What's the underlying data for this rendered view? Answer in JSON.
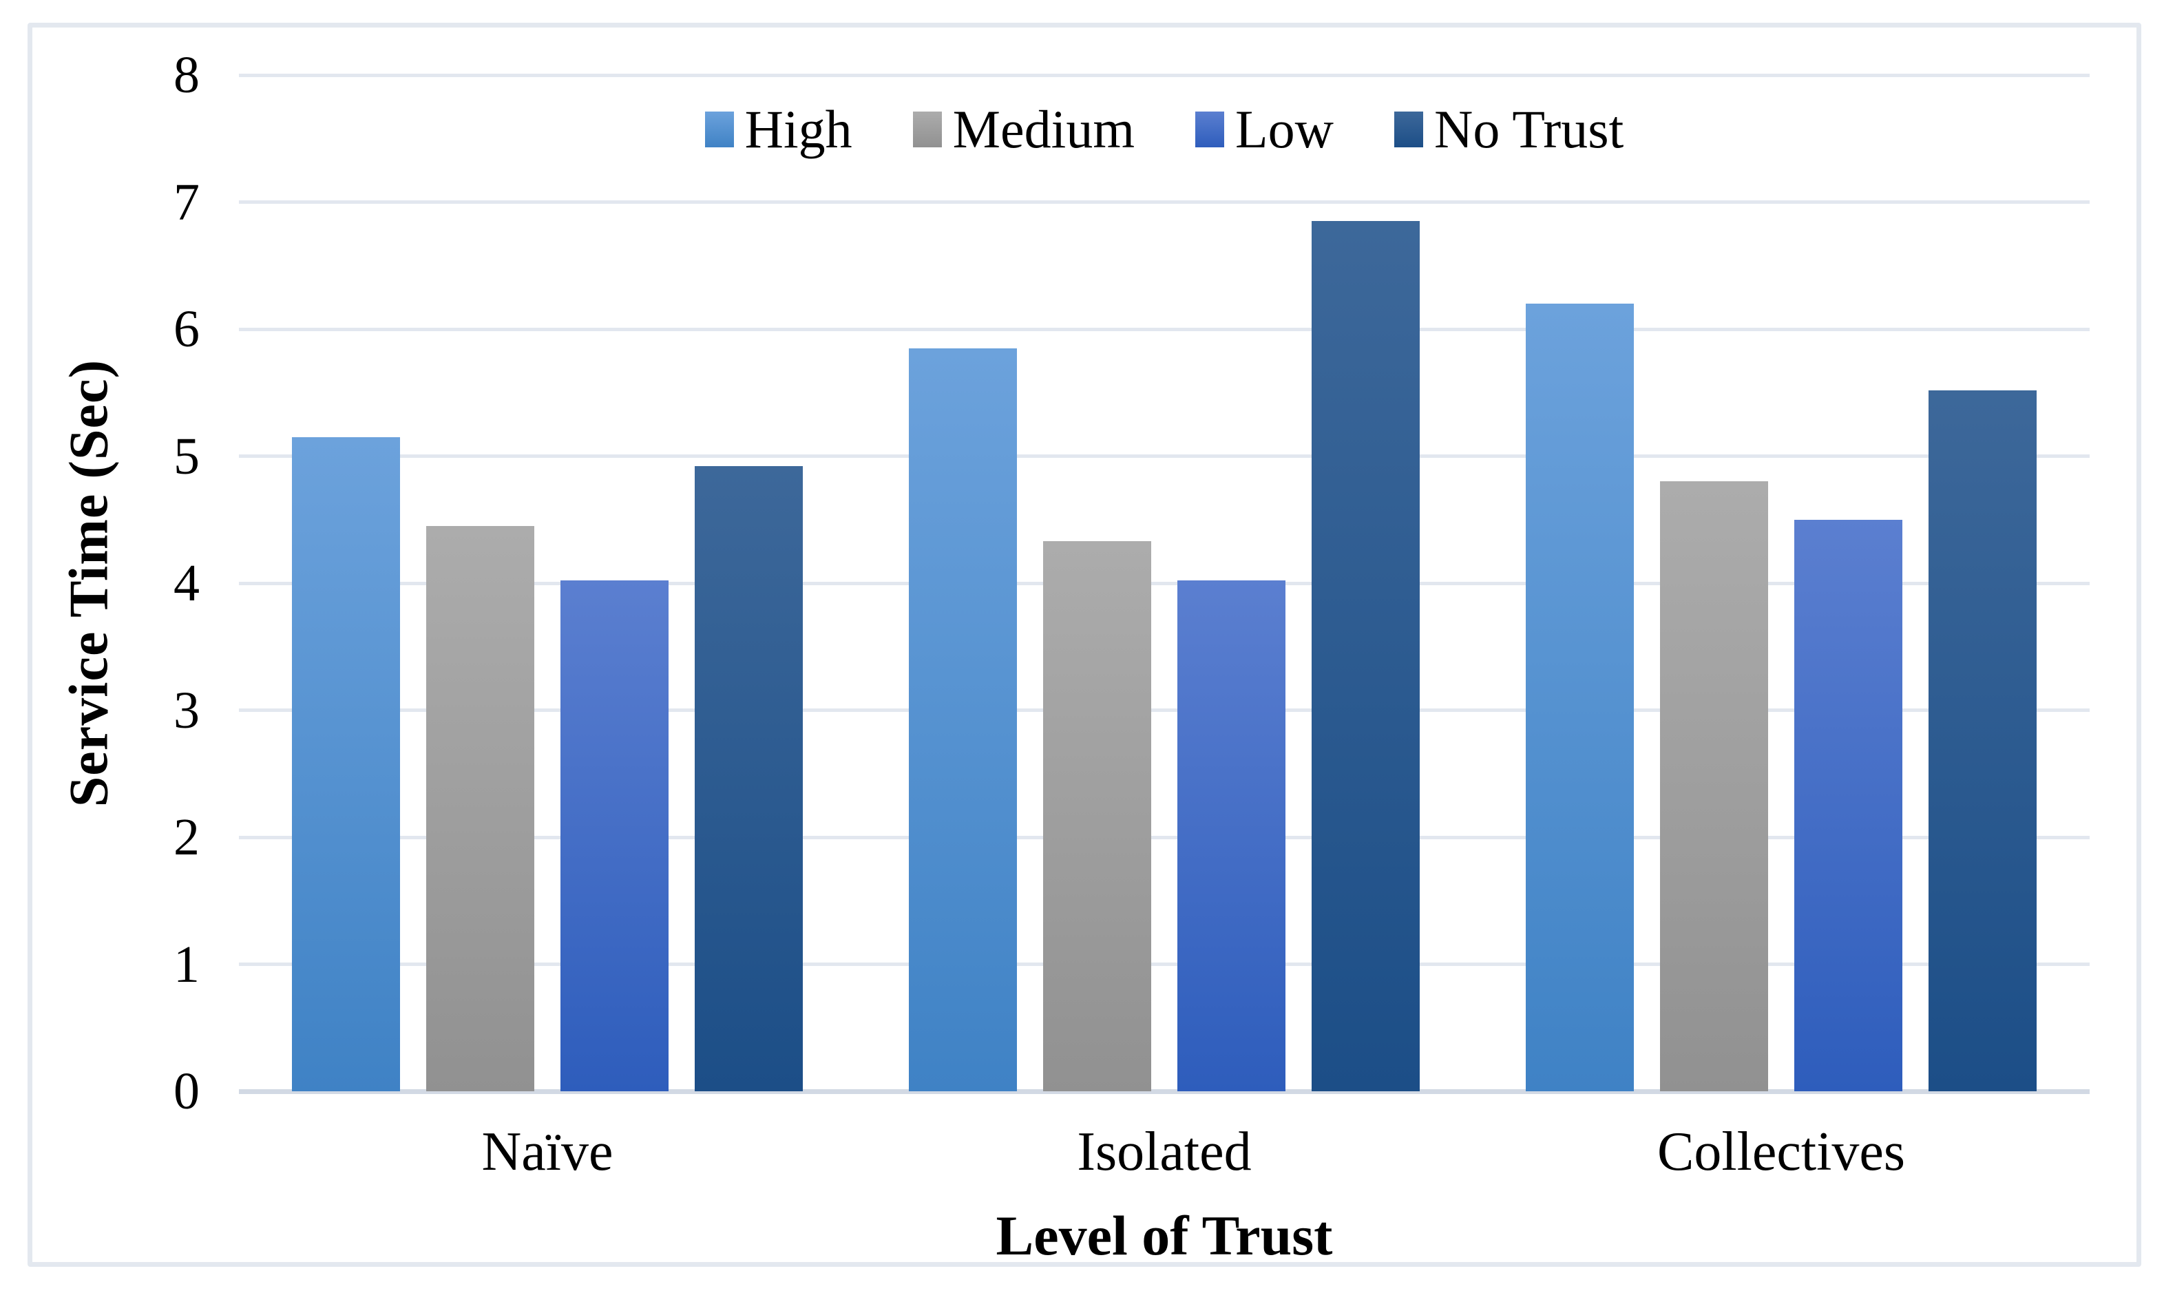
{
  "figure": {
    "background": "#ffffff",
    "frame_border_color": "#e3e8ef",
    "gridline_color": "#e2e7ef",
    "axis_line_color": "#d2d9e4"
  },
  "chart_data": {
    "type": "bar",
    "title": "",
    "xlabel": "Level of Trust",
    "ylabel": "Service Time (Sec)",
    "categories": [
      "Naïve",
      "Isolated",
      "Collectives"
    ],
    "series": [
      {
        "name": "High",
        "values": [
          5.15,
          5.85,
          6.2
        ],
        "color_top": "#6CA2DC",
        "color_bottom": "#3F82C5"
      },
      {
        "name": "Medium",
        "values": [
          4.45,
          4.33,
          4.8
        ],
        "color_top": "#ACACAC",
        "color_bottom": "#919191"
      },
      {
        "name": "Low",
        "values": [
          4.02,
          4.02,
          4.5
        ],
        "color_top": "#5B7FD0",
        "color_bottom": "#2E5DBC"
      },
      {
        "name": "No Trust",
        "values": [
          4.92,
          6.85,
          5.52
        ],
        "color_top": "#3D689A",
        "color_bottom": "#1C4E87"
      }
    ],
    "ylim": [
      0,
      8
    ],
    "yticks": [
      0,
      1,
      2,
      3,
      4,
      5,
      6,
      7,
      8
    ],
    "grid": true,
    "legend_position": "top"
  }
}
